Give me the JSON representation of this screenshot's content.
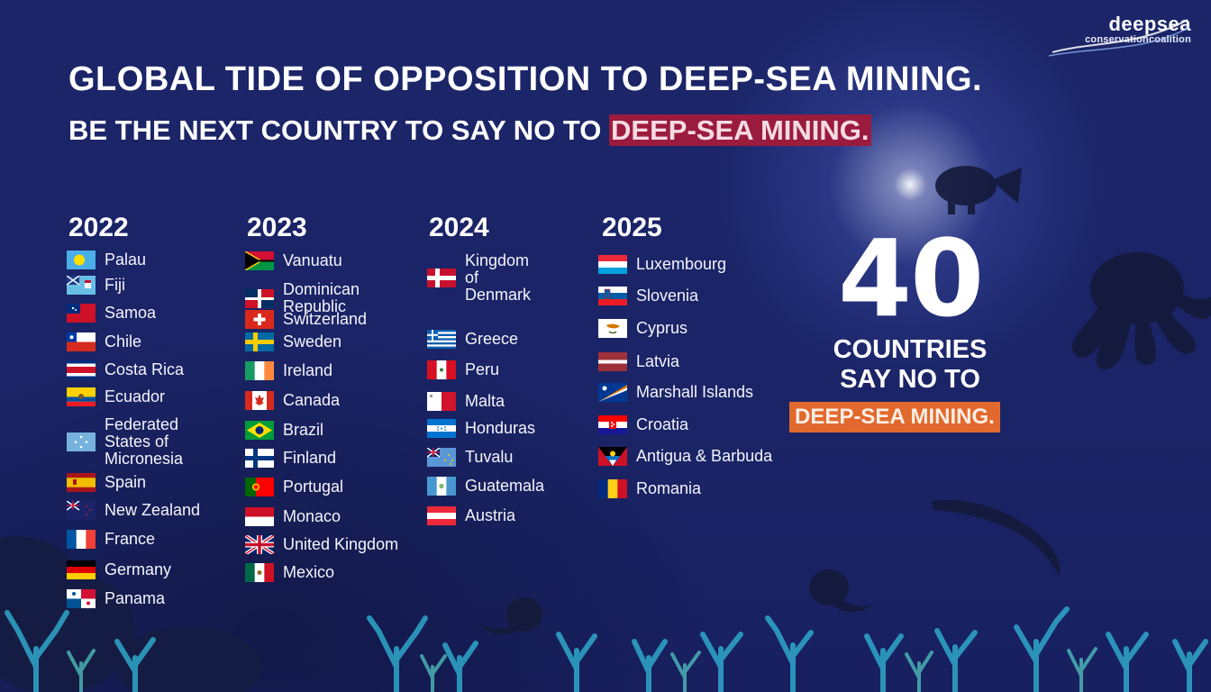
{
  "logo": {
    "line1": "deepsea",
    "line2": "conservationcoalition"
  },
  "title": "GLOBAL TIDE OF OPPOSITION TO DEEP-SEA MINING.",
  "subtitle": {
    "prefix": "BE THE NEXT COUNTRY TO SAY NO TO ",
    "highlight": "DEEP-SEA MINING."
  },
  "columns": [
    {
      "year": "2022",
      "countries": [
        {
          "name": "Palau",
          "flag": "palau"
        },
        {
          "name": "Fiji",
          "flag": "fiji"
        },
        {
          "name": "Samoa",
          "flag": "samoa"
        },
        {
          "name": "Chile",
          "flag": "chile"
        },
        {
          "name": "Costa Rica",
          "flag": "costarica"
        },
        {
          "name": "Ecuador",
          "flag": "ecuador"
        },
        {
          "name": "Federated\nStates of\nMicronesia",
          "flag": "micronesia"
        },
        {
          "name": "Spain",
          "flag": "spain"
        },
        {
          "name": "New Zealand",
          "flag": "newzealand"
        },
        {
          "name": "France",
          "flag": "france"
        },
        {
          "name": "Germany",
          "flag": "germany"
        },
        {
          "name": "Panama",
          "flag": "panama"
        }
      ]
    },
    {
      "year": "2023",
      "countries": [
        {
          "name": "Vanuatu",
          "flag": "vanuatu"
        },
        {
          "name": "Dominican\nRepublic",
          "flag": "dominican"
        },
        {
          "name": "Switzerland",
          "flag": "switzerland"
        },
        {
          "name": "Sweden",
          "flag": "sweden"
        },
        {
          "name": "Ireland",
          "flag": "ireland"
        },
        {
          "name": "Canada",
          "flag": "canada"
        },
        {
          "name": "Brazil",
          "flag": "brazil"
        },
        {
          "name": "Finland",
          "flag": "finland"
        },
        {
          "name": "Portugal",
          "flag": "portugal"
        },
        {
          "name": "Monaco",
          "flag": "monaco"
        },
        {
          "name": "United Kingdom",
          "flag": "uk"
        },
        {
          "name": "Mexico",
          "flag": "mexico"
        }
      ]
    },
    {
      "year": "2024",
      "countries": [
        {
          "name": "Kingdom\nof\nDenmark",
          "flag": "denmark"
        },
        {
          "name": "Greece",
          "flag": "greece"
        },
        {
          "name": "Peru",
          "flag": "peru"
        },
        {
          "name": "Malta",
          "flag": "malta"
        },
        {
          "name": "Honduras",
          "flag": "honduras"
        },
        {
          "name": "Tuvalu",
          "flag": "tuvalu"
        },
        {
          "name": "Guatemala",
          "flag": "guatemala"
        },
        {
          "name": "Austria",
          "flag": "austria"
        }
      ]
    },
    {
      "year": "2025",
      "countries": [
        {
          "name": "Luxembourg",
          "flag": "luxembourg"
        },
        {
          "name": "Slovenia",
          "flag": "slovenia"
        },
        {
          "name": "Cyprus",
          "flag": "cyprus"
        },
        {
          "name": "Latvia",
          "flag": "latvia"
        },
        {
          "name": "Marshall Islands",
          "flag": "marshall"
        },
        {
          "name": "Croatia",
          "flag": "croatia"
        },
        {
          "name": "Antigua & Barbuda",
          "flag": "antigua"
        },
        {
          "name": "Romania",
          "flag": "romania"
        }
      ]
    }
  ],
  "count": "40",
  "count_caption": "COUNTRIES\nSAY NO TO",
  "badge": "DEEP-SEA MINING.",
  "colors": {
    "background": "#1a2366",
    "highlight_red": "#9b1b3e",
    "badge_orange": "#e2692d",
    "coral": "#2fa7c9"
  }
}
